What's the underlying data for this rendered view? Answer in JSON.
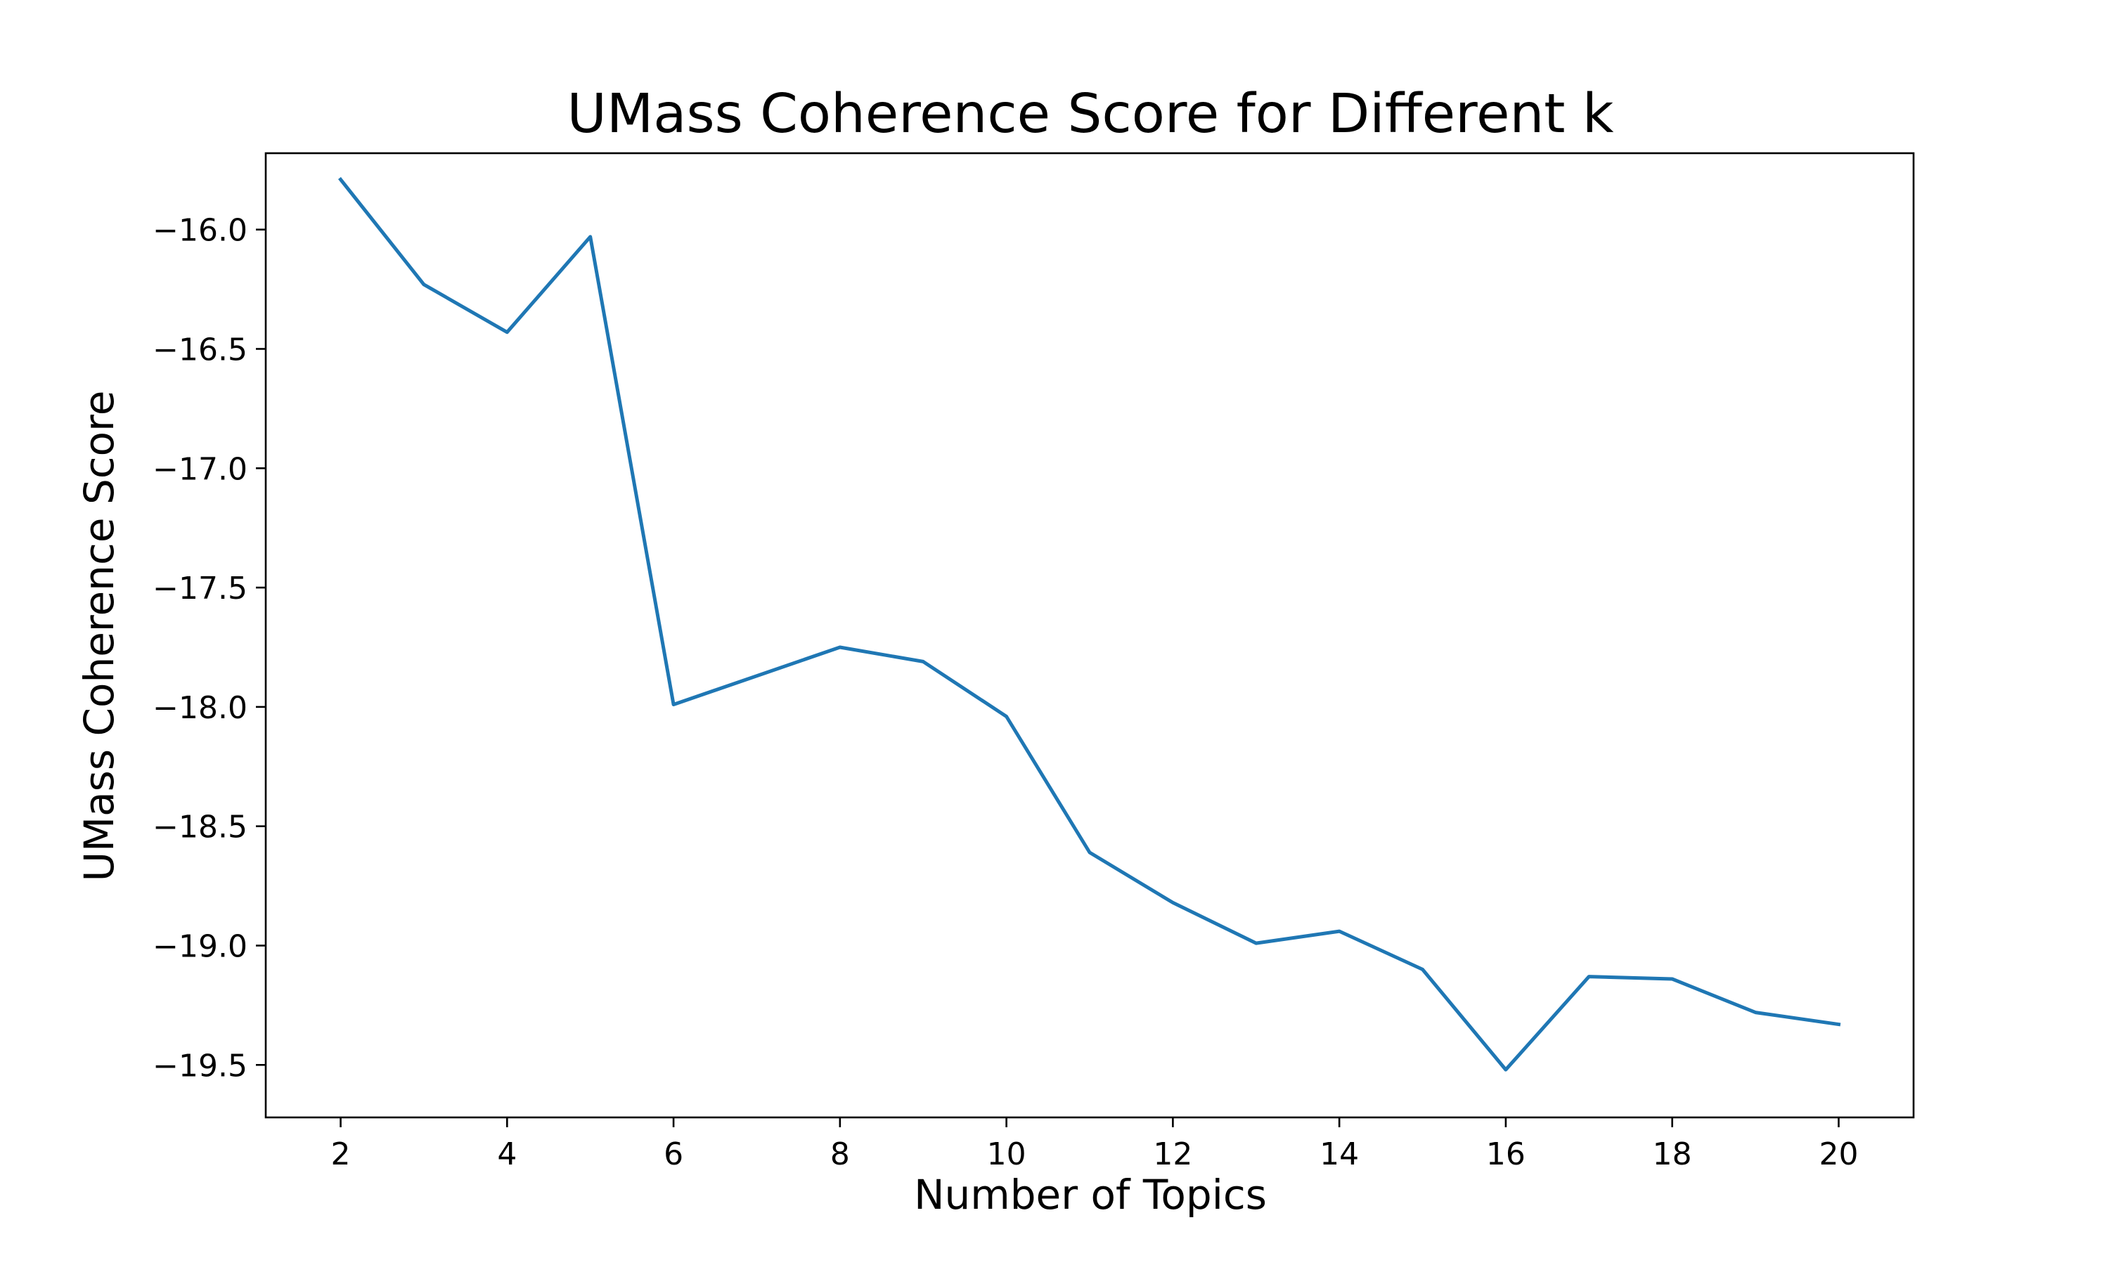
{
  "chart_data": {
    "type": "line",
    "title": "UMass Coherence Score for Different k",
    "xlabel": "Number of Topics",
    "ylabel": "UMass Coherence Score",
    "xlim": [
      1.1,
      20.9
    ],
    "ylim": [
      -19.72,
      -15.68
    ],
    "xticks": [
      2,
      4,
      6,
      8,
      10,
      12,
      14,
      16,
      18,
      20
    ],
    "xtick_labels": [
      "2",
      "4",
      "6",
      "8",
      "10",
      "12",
      "14",
      "16",
      "18",
      "20"
    ],
    "yticks": [
      -16.0,
      -16.5,
      -17.0,
      -17.5,
      -18.0,
      -18.5,
      -19.0,
      -19.5
    ],
    "ytick_labels": [
      "−16.0",
      "−16.5",
      "−17.0",
      "−17.5",
      "−18.0",
      "−18.5",
      "−19.0",
      "−19.5"
    ],
    "grid": false,
    "legend": "none",
    "color": "#1f77b4",
    "series": [
      {
        "x": [
          2,
          3,
          4,
          5,
          6,
          7,
          8,
          9,
          10,
          11,
          12,
          13,
          14,
          15,
          16,
          17,
          18,
          19,
          20
        ],
        "values": [
          -15.79,
          -16.23,
          -16.43,
          -16.03,
          -17.99,
          -17.87,
          -17.75,
          -17.81,
          -18.04,
          -18.61,
          -18.82,
          -18.99,
          -18.94,
          -19.1,
          -19.52,
          -19.13,
          -19.14,
          -19.28,
          -19.33
        ]
      }
    ]
  }
}
